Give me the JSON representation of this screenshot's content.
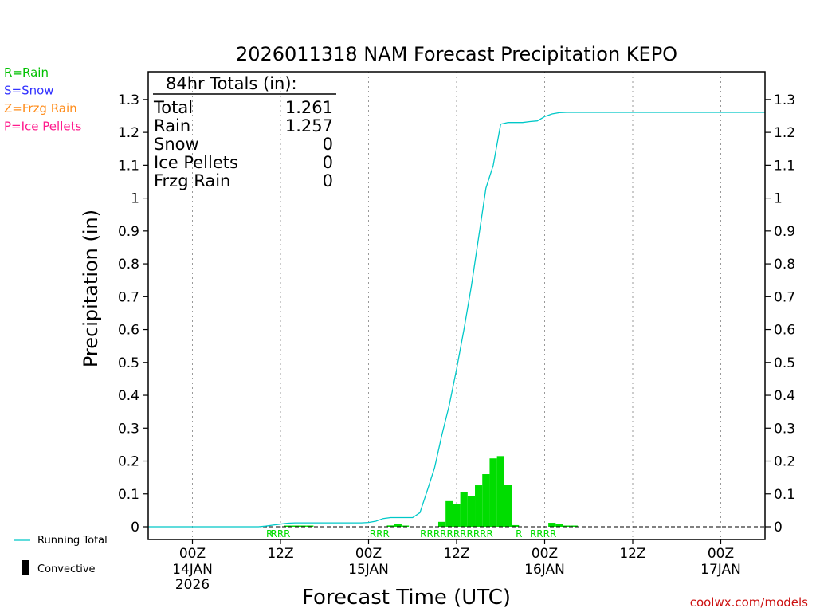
{
  "chart_data": {
    "type": "bar+line",
    "title": "2026011318 NAM Forecast Precipitation KEPO",
    "xlabel": "Forecast Time (UTC)",
    "ylabel": "Precipitation (in)",
    "ylim": [
      0,
      1.38
    ],
    "yticks": [
      0,
      0.1,
      0.2,
      0.3,
      0.4,
      0.5,
      0.6,
      0.7,
      0.8,
      0.9,
      1,
      1.1,
      1.2,
      1.3
    ],
    "ytick_labels": [
      "0",
      "0.1",
      "0.2",
      "0.3",
      "0.4",
      "0.5",
      "0.6",
      "0.7",
      "0.8",
      "0.9",
      "1",
      "1.1",
      "1.2",
      "1.3"
    ],
    "xlim_hours": [
      -6,
      78
    ],
    "x_unit": "hours from 00Z 14 JAN 2026",
    "xticks": [
      {
        "hour": 0,
        "label": "00Z",
        "date": "14JAN",
        "year": "2026"
      },
      {
        "hour": 12,
        "label": "12Z",
        "date": "",
        "year": ""
      },
      {
        "hour": 24,
        "label": "00Z",
        "date": "15JAN",
        "year": ""
      },
      {
        "hour": 36,
        "label": "12Z",
        "date": "",
        "year": ""
      },
      {
        "hour": 48,
        "label": "00Z",
        "date": "16JAN",
        "year": ""
      },
      {
        "hour": 60,
        "label": "12Z",
        "date": "",
        "year": ""
      },
      {
        "hour": 72,
        "label": "00Z",
        "date": "17JAN",
        "year": ""
      }
    ],
    "totals_box": {
      "heading": "84hr Totals (in):",
      "rows": [
        {
          "label": "Total",
          "value": "1.261"
        },
        {
          "label": "Rain",
          "value": "1.257"
        },
        {
          "label": "Snow",
          "value": "0"
        },
        {
          "label": "Ice Pellets",
          "value": "0"
        },
        {
          "label": "Frzg Rain",
          "value": "0"
        }
      ]
    },
    "type_legend": [
      {
        "text": "R=Rain",
        "color": "#00c000"
      },
      {
        "text": "S=Snow",
        "color": "#3333ff"
      },
      {
        "text": "Z=Frzg Rain",
        "color": "#ff8c1a"
      },
      {
        "text": "P=Ice Pellets",
        "color": "#ff1a8c"
      }
    ],
    "series_legend": [
      {
        "name": "Running Total",
        "color": "#00c8c8"
      },
      {
        "name": "Convective",
        "color": "#000000"
      }
    ],
    "hourly_precip": {
      "start_hour": 13,
      "values": [
        0.003,
        0.002,
        0.001,
        0.001,
        0.0,
        0.0,
        0.0,
        0.0,
        0.0,
        0.0,
        0.0,
        0.0,
        0.0,
        0.0,
        0.004,
        0.008,
        0.003,
        0.0,
        0.0,
        0.0,
        0.0,
        0.015,
        0.078,
        0.07,
        0.105,
        0.093,
        0.126,
        0.16,
        0.208,
        0.215,
        0.127,
        0.005,
        0.0,
        0.0,
        0.0,
        0.0,
        0.012,
        0.008,
        0.002,
        0.001
      ]
    },
    "precip_type_markers": [
      {
        "hour": 10.5,
        "text": "R"
      },
      {
        "hour": 12.0,
        "text": "RRR"
      },
      {
        "hour": 25.5,
        "text": "RRR"
      },
      {
        "hour": 36.0,
        "text": "RRRRRRRRRRR"
      },
      {
        "hour": 44.5,
        "text": "R"
      },
      {
        "hour": 47.8,
        "text": "RRRR"
      }
    ],
    "running_total": {
      "hours": [
        -6,
        9,
        10,
        11,
        12,
        13,
        14,
        15,
        16,
        17,
        18,
        19,
        20,
        21,
        22,
        23,
        24,
        25,
        26,
        27,
        28,
        29,
        30,
        31,
        32,
        33,
        34,
        35,
        36,
        37,
        38,
        39,
        40,
        41,
        42,
        43,
        44,
        45,
        46,
        47,
        48,
        49,
        50,
        51,
        52,
        53,
        54,
        78
      ],
      "values": [
        0.0,
        0.0,
        0.002,
        0.005,
        0.008,
        0.011,
        0.012,
        0.012,
        0.012,
        0.012,
        0.012,
        0.012,
        0.012,
        0.012,
        0.012,
        0.012,
        0.013,
        0.017,
        0.025,
        0.028,
        0.028,
        0.028,
        0.028,
        0.043,
        0.11,
        0.18,
        0.28,
        0.37,
        0.48,
        0.6,
        0.73,
        0.88,
        1.03,
        1.1,
        1.225,
        1.23,
        1.23,
        1.23,
        1.233,
        1.235,
        1.248,
        1.256,
        1.26,
        1.261,
        1.261,
        1.261,
        1.261,
        1.261
      ]
    },
    "watermark": "coolwx.com/models"
  },
  "colors": {
    "rain_bar": "#00dd00",
    "running_total_line": "#00c8c8",
    "grid": "#999999",
    "axis": "#000000",
    "watermark": "#cc1111"
  }
}
